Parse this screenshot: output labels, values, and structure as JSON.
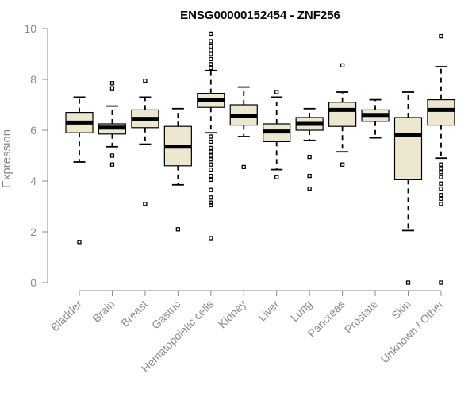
{
  "chart_data": {
    "type": "box",
    "title": "ENSG00000152454 - ZNF256",
    "xlabel": "",
    "ylabel": "Expression",
    "ylim": [
      0,
      10
    ],
    "yticks": [
      0,
      2,
      4,
      6,
      8,
      10
    ],
    "grid": false,
    "colors": {
      "box_fill": "#ede7cf",
      "box_stroke": "#000000",
      "axis": "#8a8a8a"
    },
    "categories": [
      "Bladder",
      "Brain",
      "Breast",
      "Gastric",
      "Hematopoietic cells",
      "Kidney",
      "Liver",
      "Lung",
      "Pancreas",
      "Prostate",
      "Skin",
      "Unknown / Other"
    ],
    "boxes": [
      {
        "category": "Bladder",
        "min": 4.75,
        "q1": 5.9,
        "median": 6.3,
        "q3": 6.7,
        "max": 7.3,
        "outliers": [
          1.6
        ]
      },
      {
        "category": "Brain",
        "min": 5.35,
        "q1": 5.85,
        "median": 6.1,
        "q3": 6.25,
        "max": 6.95,
        "outliers": [
          7.85,
          7.65,
          5.0,
          4.65
        ]
      },
      {
        "category": "Breast",
        "min": 5.45,
        "q1": 6.1,
        "median": 6.45,
        "q3": 6.8,
        "max": 7.3,
        "outliers": [
          7.95,
          3.1
        ]
      },
      {
        "category": "Gastric",
        "min": 3.85,
        "q1": 4.6,
        "median": 5.35,
        "q3": 6.15,
        "max": 6.85,
        "outliers": [
          2.1
        ]
      },
      {
        "category": "Hematopoietic cells",
        "min": 5.9,
        "q1": 6.9,
        "median": 7.2,
        "q3": 7.45,
        "max": 8.35,
        "outliers": [
          9.8,
          9.5,
          9.3,
          9.15,
          9.0,
          8.8,
          8.6,
          8.45,
          5.75,
          5.55,
          5.3,
          5.15,
          5.0,
          4.85,
          4.65,
          4.45,
          4.2,
          4.05,
          3.65,
          3.35,
          3.15,
          3.05,
          1.75
        ]
      },
      {
        "category": "Kidney",
        "min": 5.75,
        "q1": 6.2,
        "median": 6.55,
        "q3": 7.0,
        "max": 7.7,
        "outliers": [
          4.55
        ]
      },
      {
        "category": "Liver",
        "min": 4.45,
        "q1": 5.55,
        "median": 5.95,
        "q3": 6.25,
        "max": 7.3,
        "outliers": [
          7.5,
          4.15
        ]
      },
      {
        "category": "Lung",
        "min": 5.6,
        "q1": 6.0,
        "median": 6.25,
        "q3": 6.5,
        "max": 6.85,
        "outliers": [
          4.95,
          4.2,
          3.7
        ]
      },
      {
        "category": "Pancreas",
        "min": 5.15,
        "q1": 6.15,
        "median": 6.8,
        "q3": 7.1,
        "max": 7.5,
        "outliers": [
          8.55,
          4.65
        ]
      },
      {
        "category": "Prostate",
        "min": 5.7,
        "q1": 6.35,
        "median": 6.6,
        "q3": 6.8,
        "max": 7.2,
        "outliers": []
      },
      {
        "category": "Skin",
        "min": 2.05,
        "q1": 4.05,
        "median": 5.8,
        "q3": 6.5,
        "max": 7.5,
        "outliers": [
          0.0
        ]
      },
      {
        "category": "Unknown / Other",
        "min": 4.9,
        "q1": 6.2,
        "median": 6.8,
        "q3": 7.2,
        "max": 8.5,
        "outliers": [
          9.7,
          4.65,
          4.5,
          4.35,
          4.15,
          3.9,
          3.7,
          3.45,
          3.3,
          3.1,
          0.0
        ]
      }
    ]
  }
}
